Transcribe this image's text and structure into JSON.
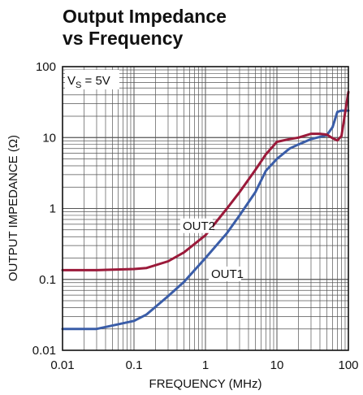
{
  "chart_data": {
    "type": "line",
    "title_line1": "Output Impedance",
    "title_line2": "vs Frequency",
    "xlabel": "FREQUENCY (MHz)",
    "ylabel": "OUTPUT IMPEDANCE (Ω)",
    "x_scale": "log",
    "y_scale": "log",
    "xlim": [
      0.01,
      100
    ],
    "ylim": [
      0.01,
      100
    ],
    "x_ticks": [
      0.01,
      0.1,
      1,
      10,
      100
    ],
    "x_tick_labels": [
      "0.01",
      "0.1",
      "1",
      "10",
      "100"
    ],
    "y_ticks": [
      0.01,
      0.1,
      1,
      10,
      100
    ],
    "y_tick_labels": [
      "0.01",
      "0.1",
      "1",
      "10",
      "100"
    ],
    "grid": true,
    "condition_main": "V",
    "condition_sub": "S",
    "condition_rest": " = 5V",
    "series": [
      {
        "name": "OUT1",
        "color": "#3a5da8",
        "x": [
          0.01,
          0.03,
          0.1,
          0.15,
          0.3,
          0.5,
          1,
          2,
          3,
          5,
          7,
          10,
          15,
          20,
          30,
          50,
          60,
          70,
          80,
          100
        ],
        "y": [
          0.02,
          0.02,
          0.026,
          0.032,
          0.058,
          0.092,
          0.2,
          0.45,
          0.8,
          1.7,
          3.4,
          5.0,
          7.0,
          8.0,
          9.5,
          10.8,
          14,
          23,
          24,
          24
        ]
      },
      {
        "name": "OUT2",
        "color": "#9b1a3a",
        "x": [
          0.01,
          0.03,
          0.1,
          0.15,
          0.3,
          0.5,
          1,
          2,
          3,
          5,
          7,
          10,
          15,
          20,
          30,
          40,
          50,
          60,
          70,
          80,
          100
        ],
        "y": [
          0.135,
          0.135,
          0.14,
          0.145,
          0.18,
          0.24,
          0.42,
          1.0,
          1.7,
          3.5,
          5.8,
          8.7,
          9.5,
          10.0,
          11.3,
          11.3,
          11.0,
          9.8,
          9.1,
          10.5,
          44
        ]
      }
    ],
    "labels": [
      {
        "text": "OUT2",
        "x": 0.48,
        "y": 0.5
      },
      {
        "text": "OUT1",
        "x": 1.2,
        "y": 0.105
      }
    ]
  }
}
